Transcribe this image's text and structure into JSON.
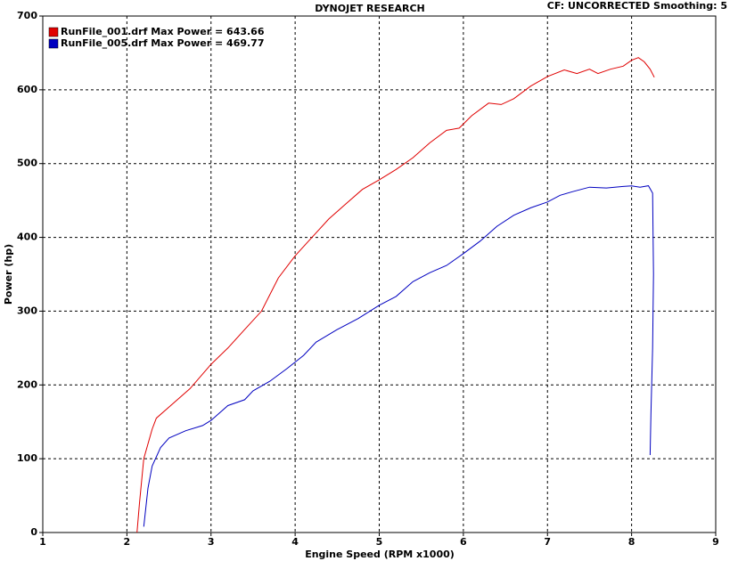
{
  "chart_data": {
    "type": "line",
    "title": "DYNOJET RESEARCH",
    "subtitle": "CF: UNCORRECTED  Smoothing: 5",
    "x_label": "Engine Speed (RPM x1000)",
    "y_label": "Power (hp)",
    "xlim": [
      1,
      9
    ],
    "ylim": [
      0,
      700
    ],
    "xticks": [
      1,
      2,
      3,
      4,
      5,
      6,
      7,
      8,
      9
    ],
    "yticks": [
      0,
      100,
      200,
      300,
      400,
      500,
      600,
      700
    ],
    "grid": true,
    "legend": "top-left",
    "series": [
      {
        "name": "RunFile_001.drf Max Power = 643.66",
        "color": "#e00000",
        "x": [
          2.12,
          2.15,
          2.2,
          2.3,
          2.35,
          2.5,
          2.75,
          3.0,
          3.2,
          3.4,
          3.6,
          3.8,
          4.0,
          4.2,
          4.4,
          4.6,
          4.8,
          5.0,
          5.2,
          5.4,
          5.6,
          5.8,
          5.95,
          6.1,
          6.3,
          6.45,
          6.6,
          6.8,
          7.0,
          7.2,
          7.35,
          7.5,
          7.6,
          7.75,
          7.9,
          8.0,
          8.08,
          8.15,
          8.22,
          8.27
        ],
        "values": [
          0,
          40,
          100,
          140,
          155,
          170,
          195,
          228,
          250,
          275,
          300,
          345,
          375,
          400,
          425,
          445,
          465,
          478,
          492,
          508,
          528,
          545,
          548,
          565,
          582,
          580,
          588,
          605,
          618,
          627,
          622,
          628,
          622,
          628,
          632,
          640,
          643.66,
          638,
          628,
          617
        ]
      },
      {
        "name": "RunFile_005.drf Max Power = 469.77",
        "color": "#0000c0",
        "x": [
          2.2,
          2.25,
          2.3,
          2.4,
          2.5,
          2.7,
          2.9,
          3.0,
          3.2,
          3.4,
          3.5,
          3.7,
          3.9,
          4.1,
          4.25,
          4.5,
          4.75,
          5.0,
          5.2,
          5.4,
          5.6,
          5.8,
          6.0,
          6.2,
          6.4,
          6.6,
          6.8,
          7.0,
          7.15,
          7.3,
          7.5,
          7.7,
          7.9,
          8.0,
          8.1,
          8.2,
          8.25,
          8.26,
          8.25,
          8.23,
          8.22
        ],
        "values": [
          8,
          60,
          90,
          115,
          128,
          138,
          145,
          152,
          172,
          180,
          192,
          205,
          222,
          240,
          258,
          275,
          290,
          308,
          320,
          340,
          352,
          362,
          378,
          395,
          415,
          430,
          440,
          448,
          457,
          462,
          468,
          467,
          469,
          469.77,
          468,
          470,
          460,
          350,
          250,
          160,
          105
        ]
      }
    ]
  }
}
